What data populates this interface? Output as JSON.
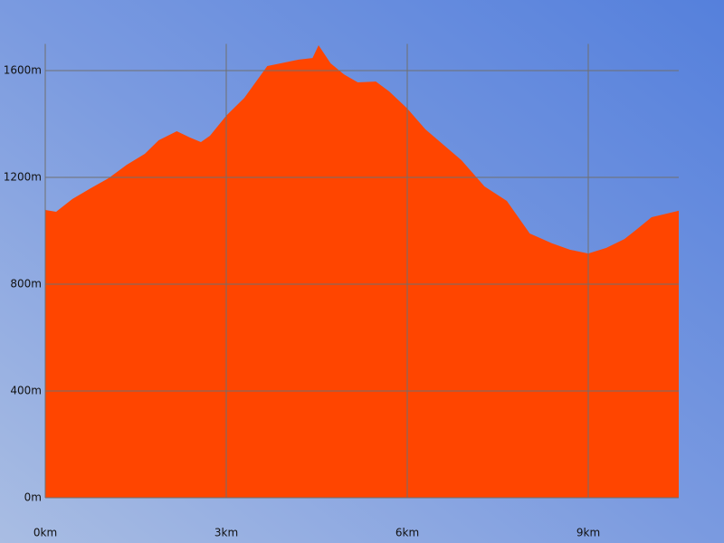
{
  "chart_data": {
    "type": "area",
    "color": "#ff4500",
    "grid": true,
    "x": [
      0,
      0.18,
      0.45,
      0.75,
      1.05,
      1.35,
      1.65,
      1.88,
      2.18,
      2.4,
      2.58,
      2.73,
      3.0,
      3.3,
      3.68,
      3.9,
      4.2,
      4.43,
      4.53,
      4.73,
      4.95,
      5.18,
      5.48,
      5.7,
      6.0,
      6.3,
      6.6,
      6.9,
      7.28,
      7.65,
      8.03,
      8.4,
      8.7,
      9.0,
      9.3,
      9.6,
      9.83,
      10.05,
      10.5
    ],
    "values": [
      1078,
      1071,
      1119,
      1159,
      1197,
      1247,
      1288,
      1339,
      1373,
      1349,
      1332,
      1356,
      1431,
      1498,
      1617,
      1627,
      1641,
      1647,
      1695,
      1627,
      1586,
      1556,
      1559,
      1522,
      1458,
      1380,
      1322,
      1264,
      1166,
      1112,
      990,
      953,
      929,
      915,
      936,
      969,
      1010,
      1051,
      1075
    ],
    "xlim": [
      0,
      10.5
    ],
    "xticks": [
      {
        "value": 0,
        "label": "0km"
      },
      {
        "value": 3,
        "label": "3km"
      },
      {
        "value": 6,
        "label": "6km"
      },
      {
        "value": 9,
        "label": "9km"
      }
    ],
    "ylim": [
      0,
      1700
    ],
    "yticks": [
      {
        "value": 0,
        "label": "0m"
      },
      {
        "value": 400,
        "label": "400m"
      },
      {
        "value": 800,
        "label": "800m"
      },
      {
        "value": 1200,
        "label": "1200m"
      },
      {
        "value": 1600,
        "label": "1600m"
      }
    ]
  }
}
